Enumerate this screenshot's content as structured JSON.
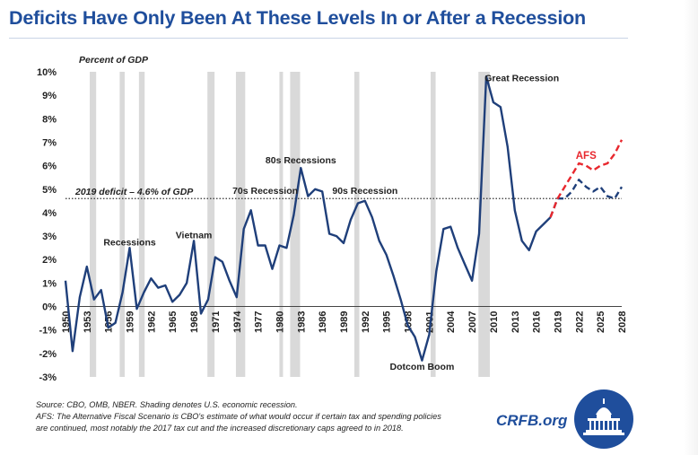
{
  "title": "Deficits Have Only Been At These Levels In or After a Recession",
  "brand": "CRFB.org",
  "footnote": {
    "source": "Source: CBO, OMB, NBER. Shading denotes U.S. economic recession.",
    "afs_line1": "AFS: The Alternative Fiscal Scenario is CBO's estimate of what would occur if certain tax and spending policies",
    "afs_line2": "are continued, most notably the 2017 tax cut and the increased discretionary caps agreed to in 2018."
  },
  "colors": {
    "historical": "#1f3f7a",
    "afs": "#e8282e",
    "recession": "#d9d9d9",
    "title": "#1f4e9c"
  },
  "chart_data": {
    "type": "line",
    "title": "Deficits Have Only Been At These Levels In or After a Recession",
    "ylabel": "Percent of GDP",
    "xlabel": "",
    "xlim": [
      1950,
      2028
    ],
    "ylim": [
      -3,
      10
    ],
    "y_ticks": [
      -3,
      -2,
      -1,
      0,
      1,
      2,
      3,
      4,
      5,
      6,
      7,
      8,
      9,
      10
    ],
    "y_tick_labels": [
      "-3%",
      "-2%",
      "-1%",
      "0%",
      "1%",
      "2%",
      "3%",
      "4%",
      "5%",
      "6%",
      "7%",
      "8%",
      "9%",
      "10%"
    ],
    "x_ticks": [
      1950,
      1953,
      1956,
      1959,
      1962,
      1965,
      1968,
      1971,
      1974,
      1977,
      1980,
      1983,
      1986,
      1989,
      1992,
      1995,
      1998,
      2001,
      2004,
      2007,
      2010,
      2013,
      2016,
      2019,
      2022,
      2025,
      2028
    ],
    "x_tick_labels": [
      "1950",
      "1953",
      "1956",
      "1959",
      "1962",
      "1965",
      "1968",
      "1971",
      "1974",
      "1977",
      "1980",
      "1983",
      "1986",
      "1989",
      "1992",
      "1995",
      "1998",
      "2001",
      "2004",
      "2007",
      "2010",
      "2013",
      "2016",
      "2019",
      "2022",
      "2025",
      "2028"
    ],
    "recessions": [
      [
        1953.4,
        1954.3
      ],
      [
        1957.6,
        1958.3
      ],
      [
        1960.3,
        1961.1
      ],
      [
        1969.9,
        1970.9
      ],
      [
        1973.9,
        1975.2
      ],
      [
        1980.0,
        1980.5
      ],
      [
        1981.5,
        1982.9
      ],
      [
        1990.5,
        1991.2
      ],
      [
        2001.2,
        2001.9
      ],
      [
        2007.9,
        2009.5
      ]
    ],
    "series": [
      {
        "name": "",
        "style": "solid",
        "x": [
          1950,
          1951,
          1952,
          1953,
          1954,
          1955,
          1956,
          1957,
          1958,
          1959,
          1960,
          1961,
          1962,
          1963,
          1964,
          1965,
          1966,
          1967,
          1968,
          1969,
          1970,
          1971,
          1972,
          1973,
          1974,
          1975,
          1976,
          1977,
          1978,
          1979,
          1980,
          1981,
          1982,
          1983,
          1984,
          1985,
          1986,
          1987,
          1988,
          1989,
          1990,
          1991,
          1992,
          1993,
          1994,
          1995,
          1996,
          1997,
          1998,
          1999,
          2000,
          2001,
          2002,
          2003,
          2004,
          2005,
          2006,
          2007,
          2008,
          2009,
          2010,
          2011,
          2012,
          2013,
          2014,
          2015,
          2016,
          2017,
          2018
        ],
        "values": [
          1.1,
          -1.9,
          0.4,
          1.7,
          0.3,
          0.7,
          -0.9,
          -0.7,
          0.6,
          2.5,
          -0.1,
          0.6,
          1.2,
          0.8,
          0.9,
          0.2,
          0.5,
          1.0,
          2.8,
          -0.3,
          0.3,
          2.1,
          1.9,
          1.1,
          0.4,
          3.3,
          4.1,
          2.6,
          2.6,
          1.6,
          2.6,
          2.5,
          3.9,
          5.9,
          4.7,
          5.0,
          4.9,
          3.1,
          3.0,
          2.7,
          3.7,
          4.4,
          4.5,
          3.8,
          2.8,
          2.2,
          1.3,
          0.3,
          -0.8,
          -1.3,
          -2.3,
          -1.2,
          1.5,
          3.3,
          3.4,
          2.5,
          1.8,
          1.1,
          3.1,
          9.8,
          8.7,
          8.5,
          6.8,
          4.1,
          2.8,
          2.4,
          3.2,
          3.5,
          3.8
        ]
      },
      {
        "name": "",
        "style": "dashed",
        "x": [
          2018,
          2019,
          2020,
          2021,
          2022,
          2023,
          2024,
          2025,
          2026,
          2027,
          2028
        ],
        "values": [
          3.8,
          4.6,
          4.6,
          4.9,
          5.4,
          5.1,
          4.9,
          5.1,
          4.7,
          4.6,
          5.1
        ]
      },
      {
        "name": "AFS",
        "style": "dashed",
        "x": [
          2018,
          2019,
          2020,
          2021,
          2022,
          2023,
          2024,
          2025,
          2026,
          2027,
          2028
        ],
        "values": [
          3.8,
          4.6,
          5.1,
          5.6,
          6.1,
          6.0,
          5.8,
          6.0,
          6.1,
          6.5,
          7.1
        ]
      }
    ],
    "reference_line": {
      "y": 4.6,
      "label": "2019 deficit – 4.6% of GDP"
    },
    "annotations": [
      {
        "text": "Recessions",
        "x": 1959,
        "y": 2.6
      },
      {
        "text": "Vietnam",
        "x": 1968,
        "y": 2.9
      },
      {
        "text": "70s Recession",
        "x": 1978,
        "y": 4.8
      },
      {
        "text": "80s Recessions",
        "x": 1983,
        "y": 6.1
      },
      {
        "text": "90s Recession",
        "x": 1992,
        "y": 4.8
      },
      {
        "text": "Dotcom Boom",
        "x": 2000,
        "y": -2.7
      },
      {
        "text": "Great Recession",
        "x": 2014,
        "y": 9.6
      },
      {
        "text": "AFS",
        "x": 2023,
        "y": 6.3
      }
    ],
    "grid": false,
    "legend": "none"
  }
}
